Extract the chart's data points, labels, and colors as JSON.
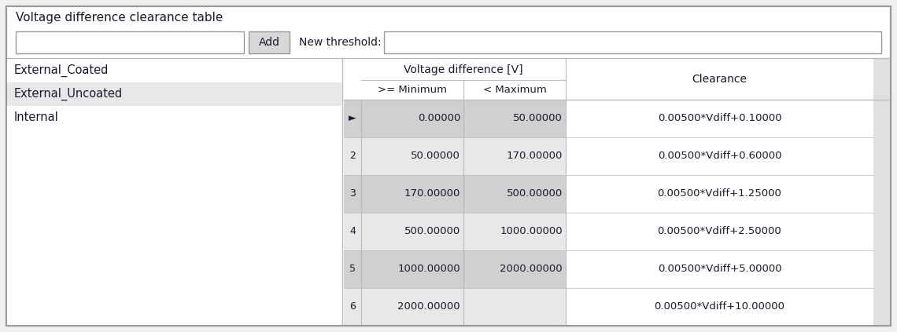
{
  "title": "Voltage difference clearance table",
  "list_items": [
    "External_Coated",
    "External_Uncoated",
    "Internal"
  ],
  "selected_item_index": 1,
  "add_button_label": "Add",
  "new_threshold_label": "New threshold:",
  "col_header_1": "Voltage difference [V]",
  "col_header_2a": ">= Minimum",
  "col_header_2b": "< Maximum",
  "col_header_3": "Clearance",
  "rows": [
    {
      "row_num": "►",
      "min": "0.00000",
      "max": "50.00000",
      "clearance": "0.00500*Vdiff+0.10000"
    },
    {
      "row_num": "2",
      "min": "50.00000",
      "max": "170.00000",
      "clearance": "0.00500*Vdiff+0.60000"
    },
    {
      "row_num": "3",
      "min": "170.00000",
      "max": "500.00000",
      "clearance": "0.00500*Vdiff+1.25000"
    },
    {
      "row_num": "4",
      "min": "500.00000",
      "max": "1000.00000",
      "clearance": "0.00500*Vdiff+2.50000"
    },
    {
      "row_num": "5",
      "min": "1000.00000",
      "max": "2000.00000",
      "clearance": "0.00500*Vdiff+5.00000"
    },
    {
      "row_num": "6",
      "min": "2000.00000",
      "max": "",
      "clearance": "0.00500*Vdiff+10.00000"
    }
  ],
  "bg_color": "#f0f0f0",
  "outer_border_color": "#999999",
  "panel_bg": "#ffffff",
  "list_selected_bg": "#e8e8e8",
  "table_row_bg_odd": "#d0d0d0",
  "table_row_bg_even": "#e8e8e8",
  "text_color": "#1a1a2e",
  "input_border_color": "#999999",
  "button_bg": "#d8d8d8",
  "divider_color": "#bbbbbb",
  "right_extra_bg": "#e0e0e0",
  "fig_width": 11.4,
  "fig_height": 4.23
}
